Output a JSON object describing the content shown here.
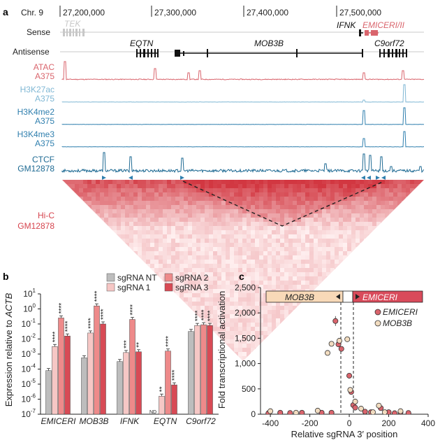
{
  "colors": {
    "atac": "#d9646c",
    "h3k27ac": "#7fb7d4",
    "h3k4": "#2f7fae",
    "ctcf": "#1e6a93",
    "hic": "#d6444e",
    "sgrna_nt": "#bdbdbd",
    "sgrna_1": "#f6c7c5",
    "sgrna_2": "#ee8a8a",
    "sgrna_3": "#d84a55",
    "mob3b_box": "#f8d9b8",
    "emiceri_box": "#d94b5b",
    "tek_gray": "#c8c8c8"
  },
  "panel_a": {
    "label": "a",
    "chrom": "Chr. 9",
    "coords": [
      "27,200,000",
      "27,300,000",
      "27,400,000",
      "27,500,000"
    ],
    "sense_label": "Sense",
    "antisense_label": "Antisense",
    "genes": {
      "tek": "TEK",
      "ifnk": "IFNK",
      "emiceri": "EMICERI/II",
      "eqtn": "EQTN",
      "mob3b": "MOB3B",
      "c9orf72": "C9orf72"
    },
    "tracks": [
      {
        "name": "ATAC",
        "cell": "A375",
        "key": "atac"
      },
      {
        "name": "H3K27ac",
        "cell": "A375",
        "key": "h3k27ac"
      },
      {
        "name": "H3K4me2",
        "cell": "A375",
        "key": "h3k4"
      },
      {
        "name": "H3K4me3",
        "cell": "A375",
        "key": "h3k4"
      },
      {
        "name": "CTCF",
        "cell": "GM12878",
        "key": "ctcf"
      }
    ],
    "hic_label_1": "Hi-C",
    "hic_label_2": "GM12878"
  },
  "panel_b": {
    "label": "b",
    "legend": [
      "sgRNA NT",
      "sgRNA 1",
      "sgRNA 2",
      "sgRNA 3"
    ],
    "ylabel": "Expression relative to ",
    "ylabel_gene": "ACTB",
    "nd_label": "ND",
    "chart_data": {
      "type": "bar",
      "categories": [
        "EMICERI",
        "MOB3B",
        "IFNK",
        "EQTN",
        "C9orf72"
      ],
      "yscale": "log10",
      "ylim_exp": [
        -7,
        1
      ],
      "ytick_labels": [
        "10",
        "10",
        "10",
        "10",
        "10",
        "10",
        "10",
        "10",
        "10"
      ],
      "ytick_exps": [
        "1",
        "0",
        "-1",
        "-2",
        "-3",
        "-4",
        "-5",
        "-6",
        "-7"
      ],
      "series": [
        {
          "name": "sgRNA NT",
          "log_values": [
            -4.1,
            -3.25,
            -3.5,
            null,
            -1.5
          ]
        },
        {
          "name": "sgRNA 1",
          "log_values": [
            -2.5,
            -1.6,
            -2.9,
            -5.8,
            -1.1
          ]
        },
        {
          "name": "sgRNA 2",
          "log_values": [
            -0.6,
            0.2,
            -0.7,
            -2.8,
            -1.05
          ]
        },
        {
          "name": "sgRNA 3",
          "log_values": [
            -1.8,
            -1.0,
            -2.85,
            -5.05,
            -1.1
          ]
        }
      ],
      "significance": [
        [
          "",
          "****",
          "****",
          "****"
        ],
        [
          "",
          "****",
          "****",
          "****"
        ],
        [
          "",
          "***",
          "****",
          "**"
        ],
        [
          "",
          "**",
          "****",
          "****"
        ],
        [
          "",
          "****",
          "****",
          "****"
        ]
      ]
    }
  },
  "panel_c": {
    "label": "c",
    "ylabel": "Fold transcriptional activation",
    "xlabel": "Relative sgRNA 3′ position",
    "box_left": "MOB3B",
    "box_right": "EMICERI",
    "legend": [
      "EMICERI",
      "MOB3B"
    ],
    "chart_data": {
      "type": "scatter",
      "xlim": [
        -450,
        400
      ],
      "ylim": [
        0,
        2500
      ],
      "xticks": [
        -400,
        -200,
        0,
        200,
        400
      ],
      "yticks": [
        0,
        500,
        1000,
        1500,
        2000,
        2500
      ],
      "xtick_labels": [
        "-400",
        "-200",
        "0",
        "200",
        "400"
      ],
      "ytick_labels": [
        "0",
        "500",
        "1,000",
        "1,500",
        "2,000",
        "2,500"
      ],
      "series": [
        {
          "name": "EMICERI",
          "points": [
            [
              -410,
              20
            ],
            [
              -350,
              30
            ],
            [
              -300,
              25
            ],
            [
              -240,
              30
            ],
            [
              -140,
              30
            ],
            [
              -90,
              30
            ],
            [
              -70,
              1840
            ],
            [
              -55,
              1380
            ],
            [
              -40,
              1290
            ],
            [
              0,
              760
            ],
            [
              10,
              440
            ],
            [
              20,
              180
            ],
            [
              30,
              130
            ],
            [
              80,
              50
            ],
            [
              110,
              40
            ],
            [
              160,
              120
            ],
            [
              200,
              40
            ],
            [
              230,
              20
            ],
            [
              260,
              40
            ],
            [
              300,
              25
            ]
          ]
        },
        {
          "name": "MOB3B",
          "points": [
            [
              -400,
              60
            ],
            [
              -270,
              30
            ],
            [
              -160,
              70
            ],
            [
              -110,
              1210
            ],
            [
              -90,
              1390
            ],
            [
              -50,
              1450
            ],
            [
              -10,
              1480
            ],
            [
              5,
              480
            ],
            [
              30,
              250
            ],
            [
              60,
              110
            ],
            [
              120,
              40
            ],
            [
              150,
              170
            ],
            [
              180,
              40
            ],
            [
              260,
              60
            ]
          ]
        }
      ]
    }
  }
}
